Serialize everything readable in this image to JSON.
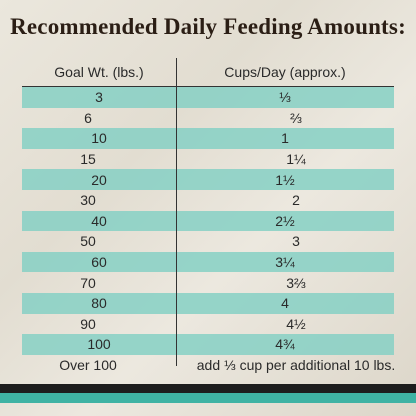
{
  "header": {
    "title": "Recommended Daily Feeding Amounts:"
  },
  "table": {
    "columns": [
      "Goal Wt. (lbs.)",
      "Cups/Day (approx.)"
    ],
    "rows": [
      [
        "3",
        "⅓"
      ],
      [
        "6",
        "⅔"
      ],
      [
        "10",
        "1"
      ],
      [
        "15",
        "1¼"
      ],
      [
        "20",
        "1½"
      ],
      [
        "30",
        "2"
      ],
      [
        "40",
        "2½"
      ],
      [
        "50",
        "3"
      ],
      [
        "60",
        "3¼"
      ],
      [
        "70",
        "3⅔"
      ],
      [
        "80",
        "4"
      ],
      [
        "90",
        "4½"
      ],
      [
        "100",
        "4¾"
      ],
      [
        "Over 100",
        "add ⅓ cup per additional 10 lbs."
      ]
    ]
  }
}
